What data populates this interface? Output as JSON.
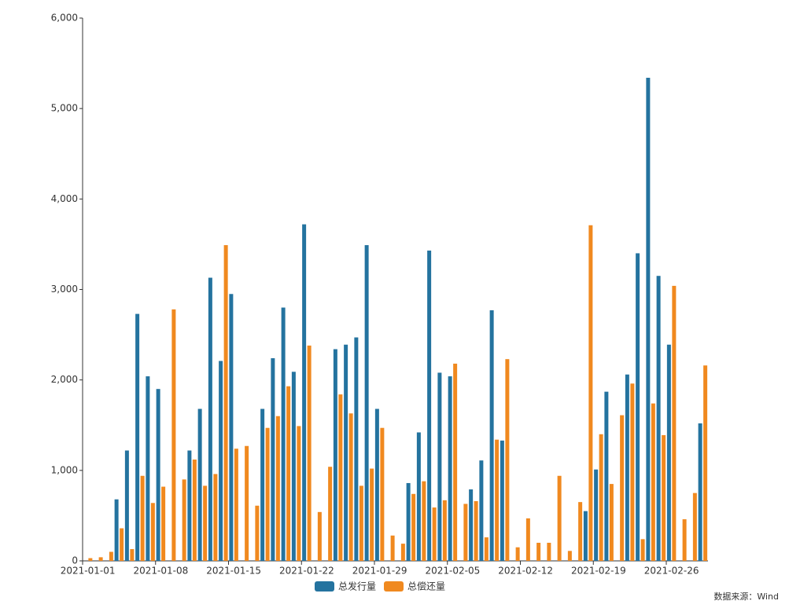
{
  "chart_data": {
    "type": "bar",
    "categories": [
      "2021-01-01",
      null,
      null,
      null,
      null,
      null,
      null,
      "2021-01-08",
      null,
      null,
      null,
      null,
      null,
      null,
      "2021-01-15",
      null,
      null,
      null,
      null,
      null,
      null,
      "2021-01-22",
      null,
      null,
      null,
      null,
      null,
      null,
      "2021-01-29",
      null,
      null,
      null,
      null,
      null,
      null,
      "2021-02-05",
      null,
      null,
      null,
      null,
      null,
      null,
      "2021-02-12",
      null,
      null,
      null,
      null,
      null,
      null,
      "2021-02-19",
      null,
      null,
      null,
      null,
      null,
      null,
      "2021-02-26",
      null,
      null,
      null
    ],
    "series": [
      {
        "name": "总发行量",
        "color": "#24739f",
        "values": [
          0,
          0,
          0,
          680,
          1220,
          2730,
          2040,
          1900,
          0,
          0,
          1220,
          1680,
          3130,
          2210,
          2950,
          0,
          0,
          1680,
          2240,
          2800,
          2090,
          3720,
          0,
          0,
          2340,
          2390,
          2470,
          3490,
          1680,
          0,
          0,
          860,
          1420,
          3430,
          2080,
          2040,
          0,
          790,
          1110,
          2770,
          1330,
          0,
          0,
          0,
          0,
          0,
          0,
          0,
          550,
          1010,
          1870,
          0,
          2060,
          3400,
          5340,
          3150,
          2390,
          0,
          0,
          1520
        ]
      },
      {
        "name": "总偿还量",
        "color": "#f0891f",
        "values": [
          30,
          40,
          100,
          360,
          130,
          940,
          640,
          820,
          2780,
          900,
          1120,
          830,
          960,
          3490,
          1240,
          1270,
          610,
          1470,
          1600,
          1930,
          1490,
          2380,
          540,
          1040,
          1840,
          1630,
          830,
          1020,
          1470,
          280,
          190,
          740,
          880,
          590,
          670,
          2180,
          630,
          660,
          260,
          1340,
          2230,
          150,
          470,
          200,
          200,
          940,
          110,
          650,
          3710,
          1400,
          850,
          1610,
          1960,
          240,
          1740,
          1390,
          3040,
          460,
          750,
          2160
        ]
      }
    ],
    "ylim": [
      0,
      6000
    ],
    "yticks": [
      0,
      {
        "value": 1000,
        "label": "1,000"
      },
      {
        "value": 2000,
        "label": "2,000"
      },
      {
        "value": 3000,
        "label": "3,000"
      },
      {
        "value": 4000,
        "label": "4,000"
      },
      {
        "value": 5000,
        "label": "5,000"
      },
      {
        "value": 6000,
        "label": "6,000"
      }
    ],
    "legend": "bottom",
    "source": "数据来源：Wind"
  }
}
